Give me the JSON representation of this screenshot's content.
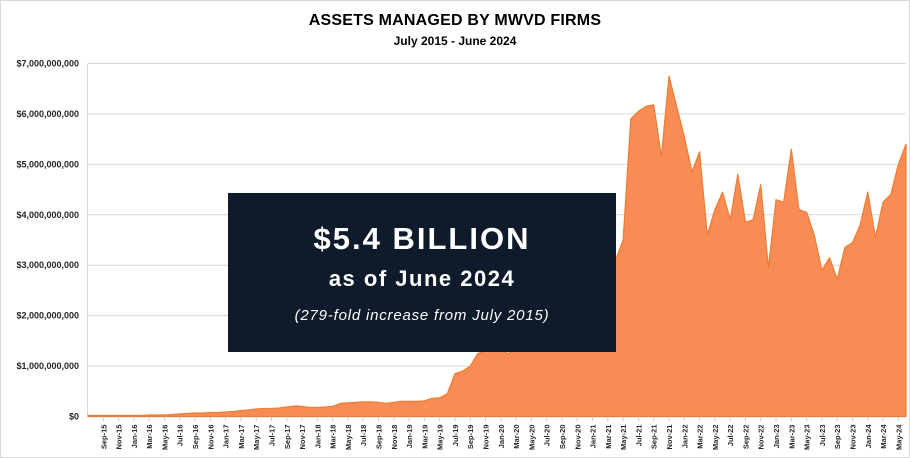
{
  "chart": {
    "title": "ASSETS MANAGED BY MWVD FIRMS",
    "subtitle": "July 2015 - June 2024"
  },
  "callout": {
    "headline": "$5.4 BILLION",
    "subline": "as of June 2024",
    "note": "(279-fold increase from July 2015)"
  },
  "colors": {
    "area_fill": "#F98C55",
    "area_edge": "#ED7D31",
    "grid": "#D9D9D9",
    "tick": "#C9C9C9",
    "axis_text": "#262626",
    "callout_bg": "#0F1B2A",
    "callout_text": "#FFFFFF"
  },
  "chart_data": {
    "type": "area",
    "title": "ASSETS MANAGED BY MWVD FIRMS",
    "subtitle": "July 2015 - June 2024",
    "unit": "USD billions",
    "ylim": [
      0,
      7
    ],
    "grid": "horizontal",
    "legend": "none",
    "y_tick_labels": [
      "$0",
      "$1,000,000,000",
      "$2,000,000,000",
      "$3,000,000,000",
      "$4,000,000,000",
      "$5,000,000,000",
      "$6,000,000,000",
      "$7,000,000,000"
    ],
    "x_tick_labels": [
      "Sep-15",
      "Nov-15",
      "Jan-16",
      "Mar-16",
      "May-16",
      "Jul-16",
      "Sep-16",
      "Nov-16",
      "Jan-17",
      "Mar-17",
      "May-17",
      "Jul-17",
      "Sep-17",
      "Nov-17",
      "Jan-18",
      "Mar-18",
      "May-18",
      "Jul-18",
      "Sep-18",
      "Nov-18",
      "Jan-19",
      "Mar-19",
      "May-19",
      "Jul-19",
      "Sep-19",
      "Nov-19",
      "Jan-20",
      "Mar-20",
      "May-20",
      "Jul-20",
      "Sep-20",
      "Nov-20",
      "Jan-21",
      "Mar-21",
      "May-21",
      "Jul-21",
      "Sep-21",
      "Nov-21",
      "Jan-22",
      "Mar-22",
      "May-22",
      "Jul-22",
      "Sep-22",
      "Nov-22",
      "Jan-23",
      "Mar-23",
      "May-23",
      "Jul-23",
      "Sep-23",
      "Nov-23",
      "Jan-24",
      "Mar-24",
      "May-24"
    ],
    "x_tick_first_index": 2,
    "x_tick_step": 2,
    "x": [
      "Jul-15",
      "Aug-15",
      "Sep-15",
      "Oct-15",
      "Nov-15",
      "Dec-15",
      "Jan-16",
      "Feb-16",
      "Mar-16",
      "Apr-16",
      "May-16",
      "Jun-16",
      "Jul-16",
      "Aug-16",
      "Sep-16",
      "Oct-16",
      "Nov-16",
      "Dec-16",
      "Jan-17",
      "Feb-17",
      "Mar-17",
      "Apr-17",
      "May-17",
      "Jun-17",
      "Jul-17",
      "Aug-17",
      "Sep-17",
      "Oct-17",
      "Nov-17",
      "Dec-17",
      "Jan-18",
      "Feb-18",
      "Mar-18",
      "Apr-18",
      "May-18",
      "Jun-18",
      "Jul-18",
      "Aug-18",
      "Sep-18",
      "Oct-18",
      "Nov-18",
      "Dec-18",
      "Jan-19",
      "Feb-19",
      "Mar-19",
      "Apr-19",
      "May-19",
      "Jun-19",
      "Jul-19",
      "Aug-19",
      "Sep-19",
      "Oct-19",
      "Nov-19",
      "Dec-19",
      "Jan-20",
      "Feb-20",
      "Mar-20",
      "Apr-20",
      "May-20",
      "Jun-20",
      "Jul-20",
      "Aug-20",
      "Sep-20",
      "Oct-20",
      "Nov-20",
      "Dec-20",
      "Jan-21",
      "Feb-21",
      "Mar-21",
      "Apr-21",
      "May-21",
      "Jun-21",
      "Jul-21",
      "Aug-21",
      "Sep-21",
      "Oct-21",
      "Nov-21",
      "Dec-21",
      "Jan-22",
      "Feb-22",
      "Mar-22",
      "Apr-22",
      "May-22",
      "Jun-22",
      "Jul-22",
      "Aug-22",
      "Sep-22",
      "Oct-22",
      "Nov-22",
      "Dec-22",
      "Jan-23",
      "Feb-23",
      "Mar-23",
      "Apr-23",
      "May-23",
      "Jun-23",
      "Jul-23",
      "Aug-23",
      "Sep-23",
      "Oct-23",
      "Nov-23",
      "Dec-23",
      "Jan-24",
      "Feb-24",
      "Mar-24",
      "Apr-24",
      "May-24",
      "Jun-24"
    ],
    "values": [
      0.02,
      0.02,
      0.02,
      0.02,
      0.02,
      0.02,
      0.02,
      0.02,
      0.03,
      0.03,
      0.03,
      0.04,
      0.05,
      0.06,
      0.07,
      0.07,
      0.08,
      0.08,
      0.09,
      0.1,
      0.12,
      0.13,
      0.15,
      0.16,
      0.16,
      0.17,
      0.19,
      0.21,
      0.2,
      0.18,
      0.18,
      0.19,
      0.2,
      0.26,
      0.27,
      0.28,
      0.29,
      0.29,
      0.28,
      0.26,
      0.28,
      0.3,
      0.3,
      0.3,
      0.31,
      0.36,
      0.37,
      0.45,
      0.85,
      0.9,
      1.0,
      1.25,
      1.3,
      1.3,
      1.3,
      1.25,
      1.35,
      1.45,
      1.55,
      1.6,
      1.7,
      1.8,
      1.9,
      2.0,
      2.15,
      2.3,
      2.5,
      2.7,
      2.9,
      3.1,
      3.5,
      5.9,
      6.05,
      6.15,
      6.18,
      5.15,
      6.75,
      6.15,
      5.55,
      4.85,
      5.25,
      3.6,
      4.1,
      4.45,
      3.9,
      4.8,
      3.85,
      3.9,
      4.6,
      2.95,
      4.3,
      4.25,
      5.3,
      4.1,
      4.05,
      3.6,
      2.9,
      3.15,
      2.72,
      3.35,
      3.45,
      3.8,
      4.45,
      3.55,
      4.25,
      4.4,
      5.0,
      5.4
    ]
  }
}
